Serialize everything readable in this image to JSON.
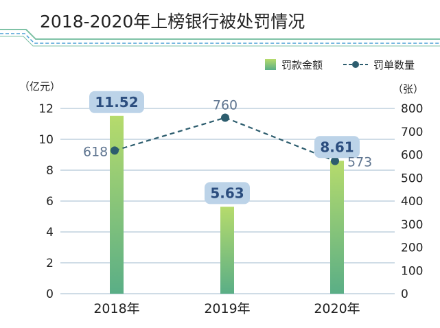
{
  "chart_data": {
    "type": "bar",
    "title": "2018-2020年上榜银行被处罚情况",
    "categories": [
      "2018年",
      "2019年",
      "2020年"
    ],
    "series": [
      {
        "name": "罚款金额",
        "kind": "bar",
        "axis": "left",
        "values": [
          11.52,
          5.63,
          8.61
        ],
        "labels": [
          "11.52",
          "5.63",
          "8.61"
        ]
      },
      {
        "name": "罚单数量",
        "kind": "line",
        "axis": "right",
        "values": [
          618,
          760,
          573
        ],
        "labels": [
          "618",
          "760",
          "573"
        ]
      }
    ],
    "y_left": {
      "unit": "（亿元）",
      "ylim": [
        0,
        12
      ],
      "ticks": [
        "0",
        "2",
        "4",
        "6",
        "8",
        "10",
        "12"
      ]
    },
    "y_right": {
      "unit": "（张）",
      "ylim": [
        0,
        800
      ],
      "ticks": [
        "0",
        "100",
        "200",
        "300",
        "400",
        "500",
        "600",
        "700",
        "800"
      ]
    },
    "grid": true,
    "legend_position": "top-right",
    "colors": {
      "bar_top": "#b6db6c",
      "bar_bottom": "#5aae86",
      "line": "#2d5d6e",
      "label_badge": "#bcd3e8",
      "label_text": "#2b4d7e",
      "line_label_text": "#5f7590",
      "grid": "#9fb8cc",
      "axis_text": "#222222",
      "title_text": "#222222",
      "title_deco": "#7fc2a6",
      "title_deco_dashed": "#4a9fd6"
    }
  }
}
